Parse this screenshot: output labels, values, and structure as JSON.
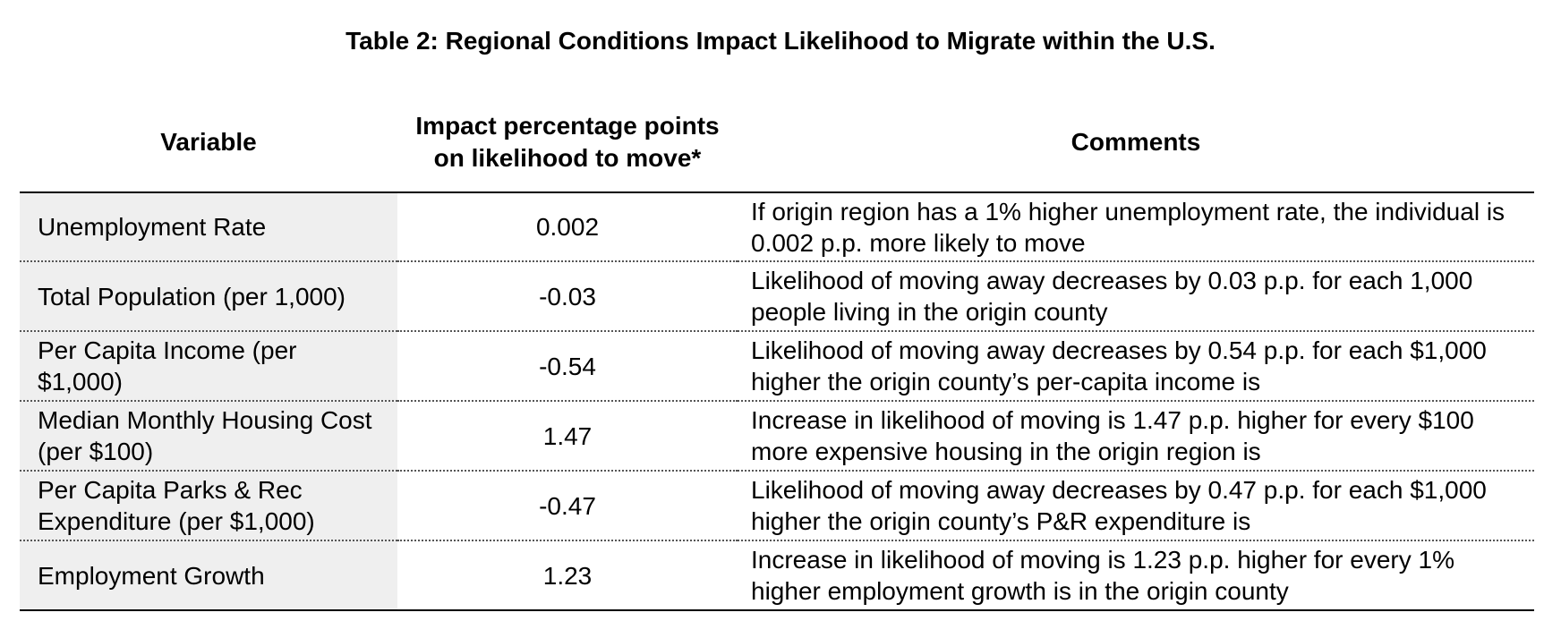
{
  "title": "Table 2: Regional Conditions Impact Likelihood to Migrate within the U.S.",
  "columns": {
    "variable": "Variable",
    "impact": "Impact percentage points on likelihood to move*",
    "comments": "Comments"
  },
  "rows": [
    {
      "variable": "Unemployment Rate",
      "impact": "0.002",
      "comment": "If origin region has a 1% higher unemployment rate, the individual is 0.002 p.p. more likely to move"
    },
    {
      "variable": "Total Population (per 1,000)",
      "impact": "-0.03",
      "comment": "Likelihood of moving away decreases by 0.03 p.p. for each 1,000 people living in the origin county"
    },
    {
      "variable": "Per Capita Income (per $1,000)",
      "impact": "-0.54",
      "comment": "Likelihood of moving away decreases by 0.54 p.p. for each $1,000 higher the origin county’s per-capita income is"
    },
    {
      "variable": "Median Monthly Housing Cost (per $100)",
      "impact": "1.47",
      "comment": "Increase in likelihood of moving is 1.47 p.p. higher for every $100 more expensive housing in the origin region is"
    },
    {
      "variable": "Per Capita Parks & Rec Expenditure (per $1,000)",
      "impact": "-0.47",
      "comment": "Likelihood of moving away decreases by 0.47 p.p. for each $1,000 higher the origin county’s P&R expenditure is"
    },
    {
      "variable": "Employment Growth",
      "impact": "1.23",
      "comment": "Increase in likelihood of moving is 1.23 p.p. higher for every 1% higher employment growth is in the origin county"
    }
  ],
  "colors": {
    "variable_column_bg": "#efefef",
    "rule": "#000000",
    "dotted_rule": "#555555"
  }
}
